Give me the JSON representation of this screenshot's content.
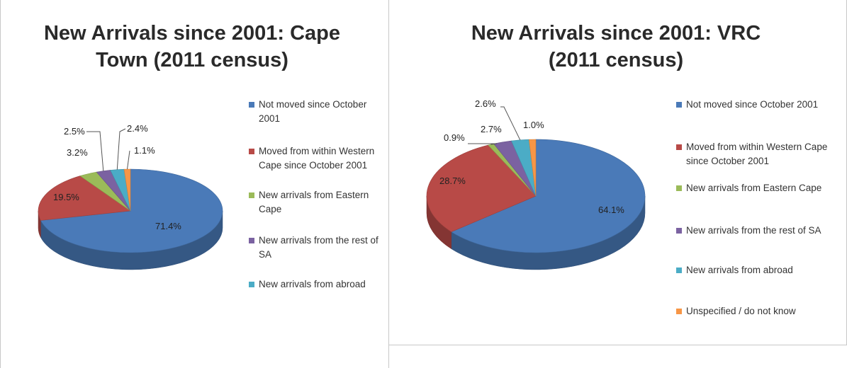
{
  "chart_data": [
    {
      "type": "pie",
      "title": "New Arrivals since 2001:  Cape Town (2011 census)",
      "legend_position": "right",
      "series": [
        {
          "label": "Not moved since October 2001",
          "value": 71.4,
          "display": "71.4%",
          "color": "#4a7ab8"
        },
        {
          "label": "Moved from within Western Cape since October 2001",
          "value": 19.5,
          "display": "19.5%",
          "color": "#b84a47"
        },
        {
          "label": "New arrivals from Eastern Cape",
          "value": 3.2,
          "display": "3.2%",
          "color": "#9bbb59"
        },
        {
          "label": "New arrivals from the rest of SA",
          "value": 2.5,
          "display": "2.5%",
          "color": "#7b62a1"
        },
        {
          "label": "New arrivals from abroad",
          "value": 2.4,
          "display": "2.4%",
          "color": "#4bacc6"
        },
        {
          "label": "",
          "value": 1.1,
          "display": "1.1%",
          "color": "#f79646"
        }
      ]
    },
    {
      "type": "pie",
      "title": "New Arrivals since 2001:  VRC (2011 census)",
      "legend_position": "right",
      "series": [
        {
          "label": "Not moved since October 2001",
          "value": 64.1,
          "display": "64.1%",
          "color": "#4a7ab8"
        },
        {
          "label": "Moved from within Western Cape since October 2001",
          "value": 28.7,
          "display": "28.7%",
          "color": "#b84a47"
        },
        {
          "label": "New arrivals from Eastern Cape",
          "value": 0.9,
          "display": "0.9%",
          "color": "#9bbb59"
        },
        {
          "label": "New arrivals from the rest of SA",
          "value": 2.7,
          "display": "2.7%",
          "color": "#7b62a1"
        },
        {
          "label": "New arrivals from abroad",
          "value": 2.6,
          "display": "2.6%",
          "color": "#4bacc6"
        },
        {
          "label": "Unspecified / do not know",
          "value": 1.0,
          "display": "1.0%",
          "color": "#f79646"
        }
      ]
    }
  ],
  "titles": {
    "left": "New Arrivals since 2001:  Cape\nTown (2011 census)",
    "right": "New Arrivals since 2001:  VRC\n(2011 census)"
  }
}
